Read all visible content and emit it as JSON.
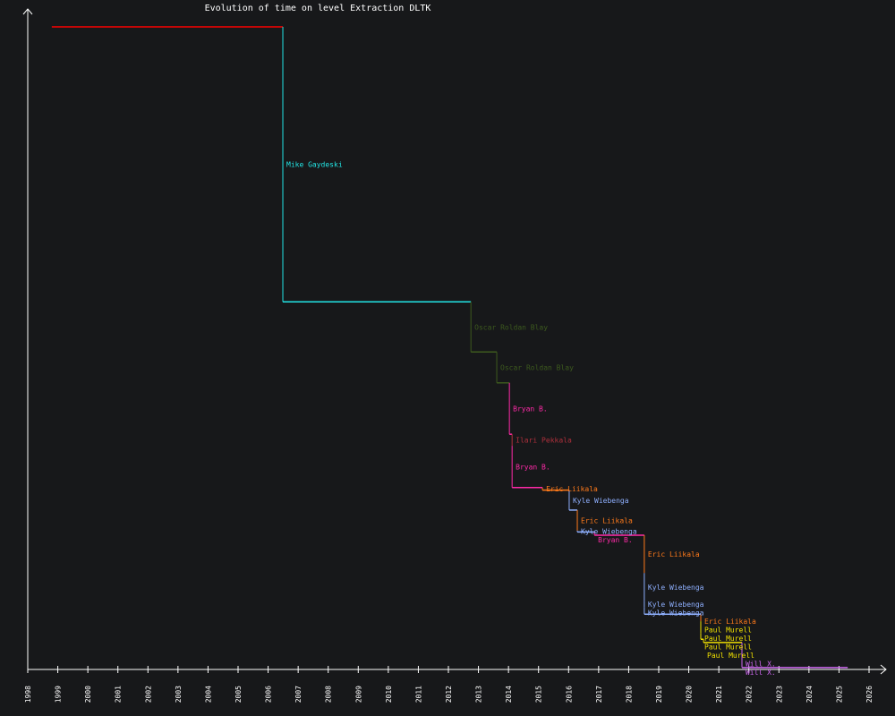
{
  "chart_data": {
    "type": "line",
    "subtype": "step",
    "title": "Evolution of time on level Extraction DLTK",
    "xlabel": "",
    "ylabel": "",
    "xlim": [
      1998,
      2026
    ],
    "ylim": [
      0,
      100
    ],
    "x_ticks": [
      "1998",
      "1999",
      "2000",
      "2001",
      "2002",
      "2003",
      "2004",
      "2005",
      "2006",
      "2007",
      "2008",
      "2009",
      "2010",
      "2011",
      "2012",
      "2013",
      "2014",
      "2015",
      "2016",
      "2017",
      "2018",
      "2019",
      "2020",
      "2021",
      "2022",
      "2023",
      "2024",
      "2025",
      "2026"
    ],
    "grid": false,
    "y_units": "relative time (% of first record)",
    "end_date": 2025.29,
    "holder_colors": {
      "": "#ff0000",
      "Mike Gaydeski": "#22e5e5",
      "Oscar Roldan Blay": "#3d5a1e",
      "Bryan B.": "#ff2aa8",
      "Ilari Pekkala": "#b0303c",
      "Eric Liikala": "#ff7a1a",
      "Kyle Wiebenga": "#8fb0ff",
      "Paul Murell": "#f0e000",
      "Will X.": "#cc66ee"
    },
    "records": [
      {
        "date": 1998.8,
        "value": 100,
        "holder": ""
      },
      {
        "date": 2006.49,
        "value": 57.2,
        "holder": "Mike Gaydeski"
      },
      {
        "date": 2012.75,
        "value": 49.4,
        "holder": "Oscar Roldan Blay"
      },
      {
        "date": 2013.61,
        "value": 44.6,
        "holder": "Oscar Roldan Blay"
      },
      {
        "date": 2014.03,
        "value": 36.6,
        "holder": "Bryan B."
      },
      {
        "date": 2014.12,
        "value": 34.8,
        "holder": "Ilari Pekkala"
      },
      {
        "date": 2014.12,
        "value": 28.3,
        "holder": "Bryan B."
      },
      {
        "date": 2015.13,
        "value": 27.9,
        "holder": "Eric Liikala"
      },
      {
        "date": 2016.02,
        "value": 24.8,
        "holder": "Kyle Wiebenga"
      },
      {
        "date": 2016.29,
        "value": 21.6,
        "holder": "Eric Liikala"
      },
      {
        "date": 2016.29,
        "value": 21.4,
        "holder": "Kyle Wiebenga"
      },
      {
        "date": 2016.86,
        "value": 20.9,
        "holder": "Bryan B."
      },
      {
        "date": 2018.52,
        "value": 15.0,
        "holder": "Eric Liikala"
      },
      {
        "date": 2018.52,
        "value": 10.6,
        "holder": "Kyle Wiebenga"
      },
      {
        "date": 2018.52,
        "value": 9.7,
        "holder": "Kyle Wiebenga"
      },
      {
        "date": 2018.52,
        "value": 8.6,
        "holder": "Kyle Wiebenga"
      },
      {
        "date": 2020.4,
        "value": 7.5,
        "holder": "Eric Liikala"
      },
      {
        "date": 2020.4,
        "value": 6.4,
        "holder": "Paul Murell"
      },
      {
        "date": 2020.4,
        "value": 5.6,
        "holder": "Paul Murell"
      },
      {
        "date": 2020.4,
        "value": 4.7,
        "holder": "Paul Murell"
      },
      {
        "date": 2020.49,
        "value": 4.2,
        "holder": "Paul Murell"
      },
      {
        "date": 2021.77,
        "value": 3.3,
        "holder": "Will X."
      },
      {
        "date": 2021.77,
        "value": 0.3,
        "holder": "Will X."
      }
    ]
  }
}
